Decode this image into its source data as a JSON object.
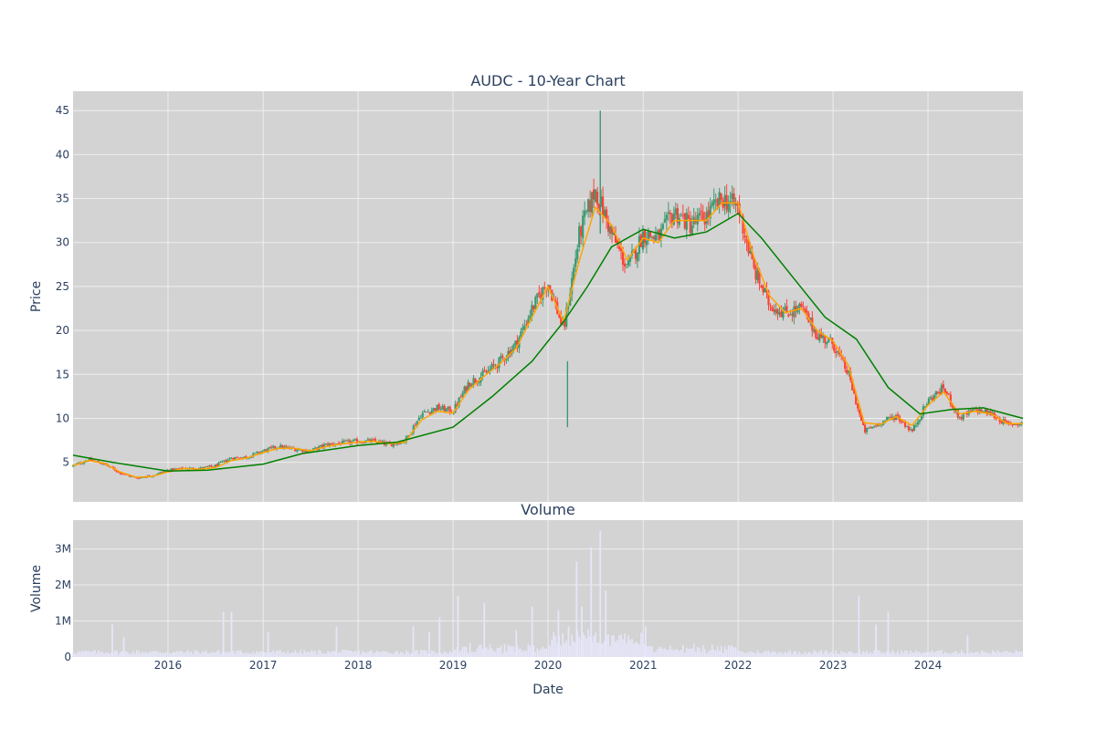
{
  "chart_data": [
    {
      "type": "candlestick",
      "title": "AUDC - 10-Year Chart",
      "ylabel": "Price",
      "xlabel": "",
      "x_range": [
        "2015-01-01",
        "2024-12-31"
      ],
      "ylim": [
        0.5,
        47.2
      ],
      "y_ticks": [
        5,
        10,
        15,
        20,
        25,
        30,
        35,
        40,
        45
      ],
      "y_tick_labels": [
        "5",
        "10",
        "15",
        "20",
        "25",
        "30",
        "35",
        "40",
        "45"
      ],
      "grid": true,
      "colors": {
        "background": "#d3d3d3",
        "grid": "#eeeeee",
        "increasing": "#3d9970",
        "decreasing": "#ff4136",
        "ma_short": "#ffa500",
        "ma_long": "#008000"
      },
      "close_series": {
        "x": [
          "2015-01-01",
          "2015-03-01",
          "2015-05-01",
          "2015-07-01",
          "2015-09-01",
          "2015-11-01",
          "2016-01-01",
          "2016-03-01",
          "2016-05-01",
          "2016-07-01",
          "2016-09-01",
          "2016-11-01",
          "2017-01-01",
          "2017-03-01",
          "2017-05-01",
          "2017-07-01",
          "2017-09-01",
          "2017-11-01",
          "2018-01-01",
          "2018-03-01",
          "2018-05-01",
          "2018-07-01",
          "2018-09-01",
          "2018-11-01",
          "2019-01-01",
          "2019-03-01",
          "2019-05-01",
          "2019-07-01",
          "2019-09-01",
          "2019-11-01",
          "2020-01-01",
          "2020-03-01",
          "2020-05-01",
          "2020-07-01",
          "2020-09-01",
          "2020-11-01",
          "2021-01-01",
          "2021-03-01",
          "2021-05-01",
          "2021-07-01",
          "2021-09-01",
          "2021-11-01",
          "2022-01-01",
          "2022-03-01",
          "2022-05-01",
          "2022-07-01",
          "2022-09-01",
          "2022-11-01",
          "2023-01-01",
          "2023-03-01",
          "2023-05-01",
          "2023-07-01",
          "2023-09-01",
          "2023-11-01",
          "2024-01-01",
          "2024-03-01",
          "2024-05-01",
          "2024-07-01",
          "2024-09-01",
          "2024-11-01",
          "2024-12-31"
        ],
        "close": [
          4.6,
          5.3,
          4.8,
          3.8,
          3.2,
          3.5,
          4.1,
          4.3,
          4.3,
          4.6,
          5.5,
          5.6,
          6.3,
          6.8,
          6.5,
          6.3,
          7.0,
          7.2,
          7.4,
          7.4,
          7.0,
          7.5,
          10.5,
          11.2,
          10.8,
          14.0,
          15.0,
          16.5,
          18.5,
          22.5,
          25.5,
          20.0,
          31.0,
          36.0,
          31.0,
          27.0,
          31.0,
          30.5,
          33.5,
          32.0,
          33.0,
          35.0,
          34.0,
          27.0,
          23.0,
          22.0,
          22.5,
          19.5,
          18.5,
          15.0,
          8.5,
          9.5,
          10.3,
          8.5,
          12.0,
          13.5,
          10.0,
          11.0,
          10.5,
          9.3,
          9.5
        ]
      },
      "series": [
        {
          "x": [
            "2015-01-01",
            "2015-03-01",
            "2015-05-01",
            "2015-07-01",
            "2015-09-01",
            "2015-11-01",
            "2016-01-01",
            "2016-03-01",
            "2016-05-01",
            "2016-07-01",
            "2016-09-01",
            "2016-11-01",
            "2017-01-01",
            "2017-03-01",
            "2017-05-01",
            "2017-07-01",
            "2017-09-01",
            "2017-11-01",
            "2018-01-01",
            "2018-03-01",
            "2018-05-01",
            "2018-07-01",
            "2018-09-01",
            "2018-11-01",
            "2019-01-01",
            "2019-03-01",
            "2019-05-01",
            "2019-07-01",
            "2019-09-01",
            "2019-11-01",
            "2020-01-01",
            "2020-03-01",
            "2020-05-01",
            "2020-07-01",
            "2020-09-01",
            "2020-11-01",
            "2021-01-01",
            "2021-03-01",
            "2021-05-01",
            "2021-07-01",
            "2021-09-01",
            "2021-11-01",
            "2022-01-01",
            "2022-03-01",
            "2022-05-01",
            "2022-07-01",
            "2022-09-01",
            "2022-11-01",
            "2023-01-01",
            "2023-03-01",
            "2023-05-01",
            "2023-07-01",
            "2023-09-01",
            "2023-11-01",
            "2024-01-01",
            "2024-03-01",
            "2024-05-01",
            "2024-07-01",
            "2024-09-01",
            "2024-11-01",
            "2024-12-31"
          ],
          "y": [
            4.6,
            5.2,
            4.9,
            3.9,
            3.3,
            3.4,
            3.9,
            4.3,
            4.2,
            4.4,
            5.2,
            5.5,
            6.1,
            6.6,
            6.6,
            6.3,
            6.8,
            7.1,
            7.3,
            7.4,
            7.1,
            7.3,
            9.8,
            10.8,
            10.6,
            13.2,
            14.8,
            16.2,
            18.0,
            21.5,
            25.0,
            21.0,
            28.0,
            34.0,
            32.0,
            28.0,
            30.5,
            30.0,
            32.5,
            32.5,
            32.5,
            34.5,
            34.5,
            28.5,
            24.0,
            22.0,
            22.5,
            20.0,
            18.8,
            16.0,
            9.5,
            9.3,
            10.2,
            9.2,
            11.5,
            13.0,
            10.5,
            10.8,
            10.5,
            9.4,
            9.4
          ]
        },
        {
          "x": [
            "2015-01-01",
            "2015-06-01",
            "2016-01-01",
            "2016-06-01",
            "2017-01-01",
            "2017-06-01",
            "2018-01-01",
            "2018-06-01",
            "2019-01-01",
            "2019-06-01",
            "2019-11-01",
            "2020-03-01",
            "2020-06-01",
            "2020-09-01",
            "2021-01-01",
            "2021-05-01",
            "2021-09-01",
            "2022-01-01",
            "2022-04-01",
            "2022-08-01",
            "2022-12-01",
            "2023-04-01",
            "2023-08-01",
            "2023-12-01",
            "2024-04-01",
            "2024-08-01",
            "2024-12-31"
          ],
          "y": [
            5.8,
            5.0,
            4.0,
            4.1,
            4.8,
            6.0,
            6.9,
            7.3,
            9.0,
            12.5,
            16.5,
            21.0,
            25.0,
            29.5,
            31.5,
            30.5,
            31.2,
            33.3,
            30.5,
            26.0,
            21.5,
            19.0,
            13.5,
            10.5,
            11.0,
            11.2,
            10.0
          ]
        }
      ],
      "markers": [
        {
          "x": "2020-03-16",
          "y_low": 9.0,
          "y_high": 16.5
        },
        {
          "x": "2020-07-20",
          "y_low": 31.0,
          "y_high": 45.0
        }
      ]
    },
    {
      "type": "bar",
      "title": "Volume",
      "xlabel": "Date",
      "ylabel": "Volume",
      "x_range": [
        "2015-01-01",
        "2024-12-31"
      ],
      "ylim": [
        0,
        3800000
      ],
      "y_ticks": [
        0,
        1000000,
        2000000,
        3000000
      ],
      "y_tick_labels": [
        "0",
        "1M",
        "2M",
        "3M"
      ],
      "x_ticks": [
        "2016-01-01",
        "2017-01-01",
        "2018-01-01",
        "2019-01-01",
        "2020-01-01",
        "2021-01-01",
        "2022-01-01",
        "2023-01-01",
        "2024-01-01"
      ],
      "x_tick_labels": [
        "2016",
        "2017",
        "2018",
        "2019",
        "2020",
        "2021",
        "2022",
        "2023",
        "2024"
      ],
      "grid": true,
      "colors": {
        "background": "#d3d3d3",
        "grid": "#eeeeee",
        "bar": "#e6e6fa"
      },
      "spikes": {
        "x": [
          "2015-06-01",
          "2015-07-15",
          "2016-08-01",
          "2016-09-01",
          "2017-01-20",
          "2017-10-10",
          "2018-08-01",
          "2018-10-01",
          "2018-11-10",
          "2019-01-20",
          "2019-05-01",
          "2019-09-01",
          "2019-11-01",
          "2020-02-10",
          "2020-03-20",
          "2020-04-20",
          "2020-05-10",
          "2020-06-15",
          "2020-07-20",
          "2020-08-10",
          "2021-01-10",
          "2023-04-10",
          "2023-06-15",
          "2023-08-01",
          "2024-06-01"
        ],
        "values": [
          900000,
          550000,
          1250000,
          1250000,
          700000,
          850000,
          850000,
          700000,
          1100000,
          1700000,
          1500000,
          750000,
          1400000,
          1300000,
          850000,
          2650000,
          1400000,
          3050000,
          3500000,
          1850000,
          850000,
          1700000,
          900000,
          1250000,
          600000
        ]
      }
    }
  ]
}
